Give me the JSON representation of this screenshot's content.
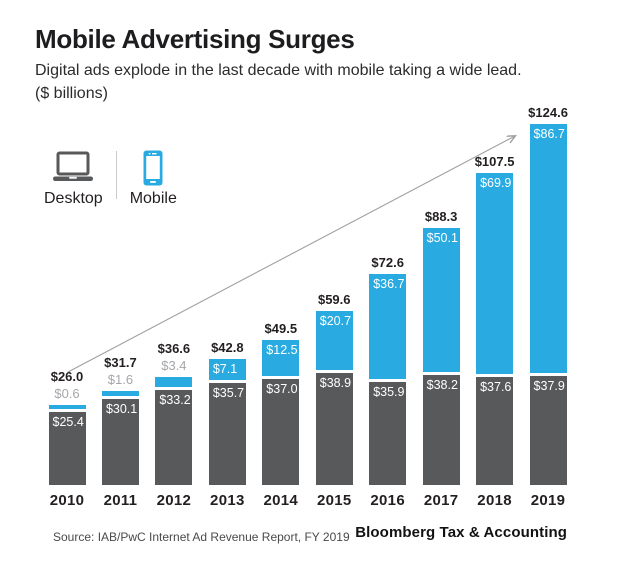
{
  "header": {
    "title": "Mobile Advertising Surges",
    "subtitle": "Digital ads explode in the last decade with mobile taking a wide lead.",
    "units_note": "($ billions)"
  },
  "legend": {
    "desktop_label": "Desktop",
    "mobile_label": "Mobile"
  },
  "colors": {
    "mobile_blue": "#29abe2",
    "desktop_gray": "#58595b",
    "muted_label_gray": "#a4a6a9",
    "trend_line_gray": "#a0a0a0",
    "text_dark": "#231f20"
  },
  "chart_data": {
    "type": "bar",
    "stacked": true,
    "title": "Mobile Advertising Surges",
    "subtitle": "Digital ads explode in the last decade with mobile taking a wide lead.",
    "units": "$ billions",
    "categories": [
      "2010",
      "2011",
      "2012",
      "2013",
      "2014",
      "2015",
      "2016",
      "2017",
      "2018",
      "2019"
    ],
    "series": [
      {
        "name": "Desktop",
        "color": "#58595b",
        "values": [
          25.4,
          30.1,
          33.2,
          35.7,
          37.0,
          38.9,
          35.9,
          38.2,
          37.6,
          37.9
        ],
        "labels": [
          "$25.4",
          "$30.1",
          "$33.2",
          "$35.7",
          "$37.0",
          "$38.9",
          "$35.9",
          "$38.2",
          "$37.6",
          "$37.9"
        ]
      },
      {
        "name": "Mobile",
        "color": "#29abe2",
        "values": [
          0.6,
          1.6,
          3.4,
          7.1,
          12.5,
          20.7,
          36.7,
          50.1,
          69.9,
          86.7
        ],
        "labels": [
          "$0.6",
          "$1.6",
          "$3.4",
          "$7.1",
          "$12.5",
          "$20.7",
          "$36.7",
          "$50.1",
          "$69.9",
          "$86.7"
        ]
      }
    ],
    "totals": [
      26.0,
      31.7,
      36.6,
      42.8,
      49.5,
      59.6,
      72.6,
      88.3,
      107.5,
      124.6
    ],
    "total_labels": [
      "$26.0",
      "$31.7",
      "$36.6",
      "$42.8",
      "$49.5",
      "$59.6",
      "$72.6",
      "$88.3",
      "$107.5",
      "$124.6"
    ],
    "ylim": [
      0,
      130
    ],
    "grid": false,
    "legend_position": "top-left",
    "annotations": [
      "straight arrow rising from the 2010 bar total to the 2019 bar total"
    ]
  },
  "footer": {
    "source": "Source: IAB/PwC Internet Ad Revenue Report, FY 2019",
    "brand": "Bloomberg Tax & Accounting"
  }
}
